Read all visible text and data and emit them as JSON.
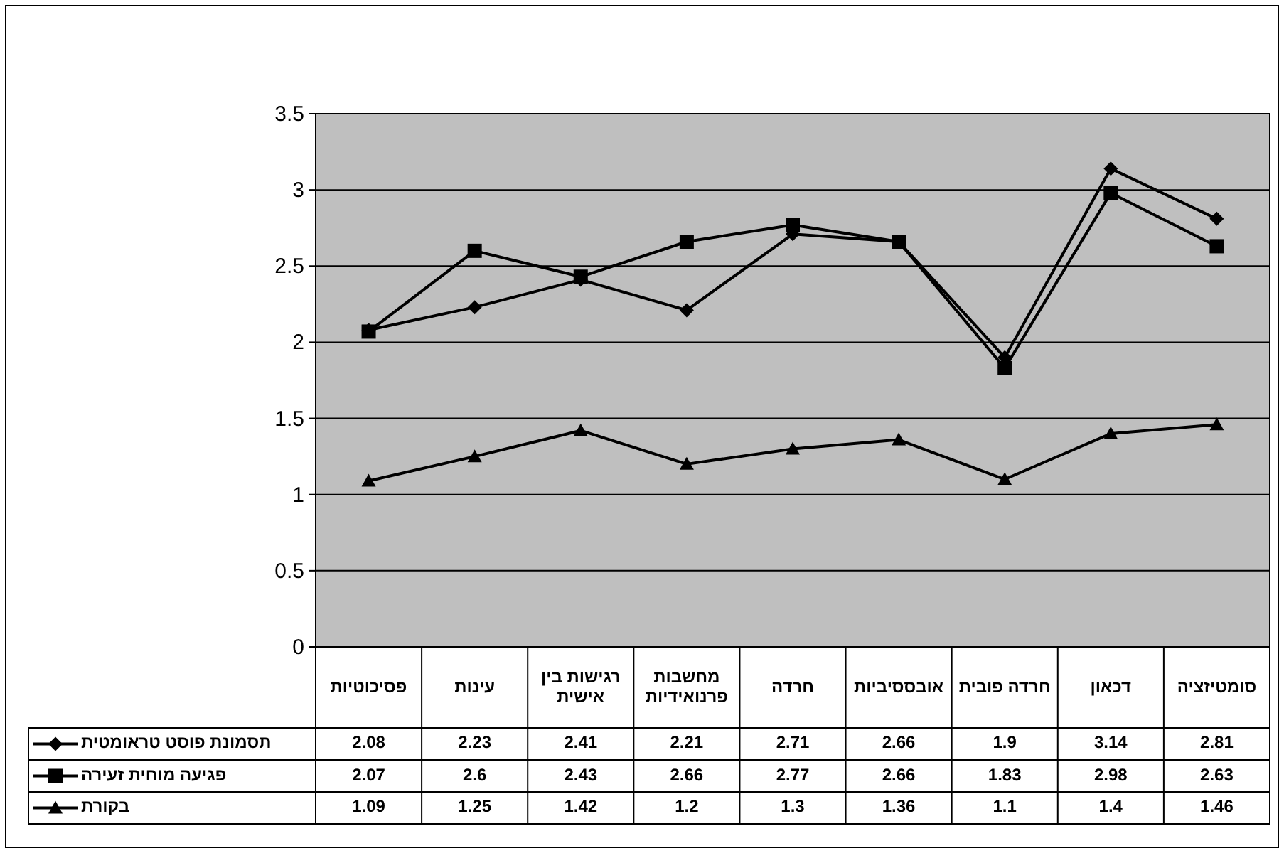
{
  "chart_data": {
    "type": "line",
    "categories": [
      "פסיכוטיות",
      "עינות",
      "רגישות בין אישית",
      "מחשבות פרנואידיות",
      "חרדה",
      "אובססיביות",
      "חרדה פובית",
      "דכאון",
      "סומטיזציה"
    ],
    "series": [
      {
        "name": "תסמונת פוסט טראומטית",
        "color": "#000000",
        "marker": "diamond",
        "values": [
          2.08,
          2.23,
          2.41,
          2.21,
          2.71,
          2.66,
          1.9,
          3.14,
          2.81
        ]
      },
      {
        "name": "פגיעה מוחית זעירה",
        "color": "#000000",
        "marker": "square",
        "values": [
          2.07,
          2.6,
          2.43,
          2.66,
          2.77,
          2.66,
          1.83,
          2.98,
          2.63
        ]
      },
      {
        "name": "בקורת",
        "color": "#000000",
        "marker": "triangle",
        "values": [
          1.09,
          1.25,
          1.42,
          1.2,
          1.3,
          1.36,
          1.1,
          1.4,
          1.46
        ]
      }
    ],
    "ylim": [
      0,
      3.5
    ],
    "yticks": [
      0,
      0.5,
      1,
      1.5,
      2,
      2.5,
      3,
      3.5
    ],
    "grid": "y",
    "legend": "bottom left",
    "data_labels": true,
    "line_style": "solid"
  }
}
